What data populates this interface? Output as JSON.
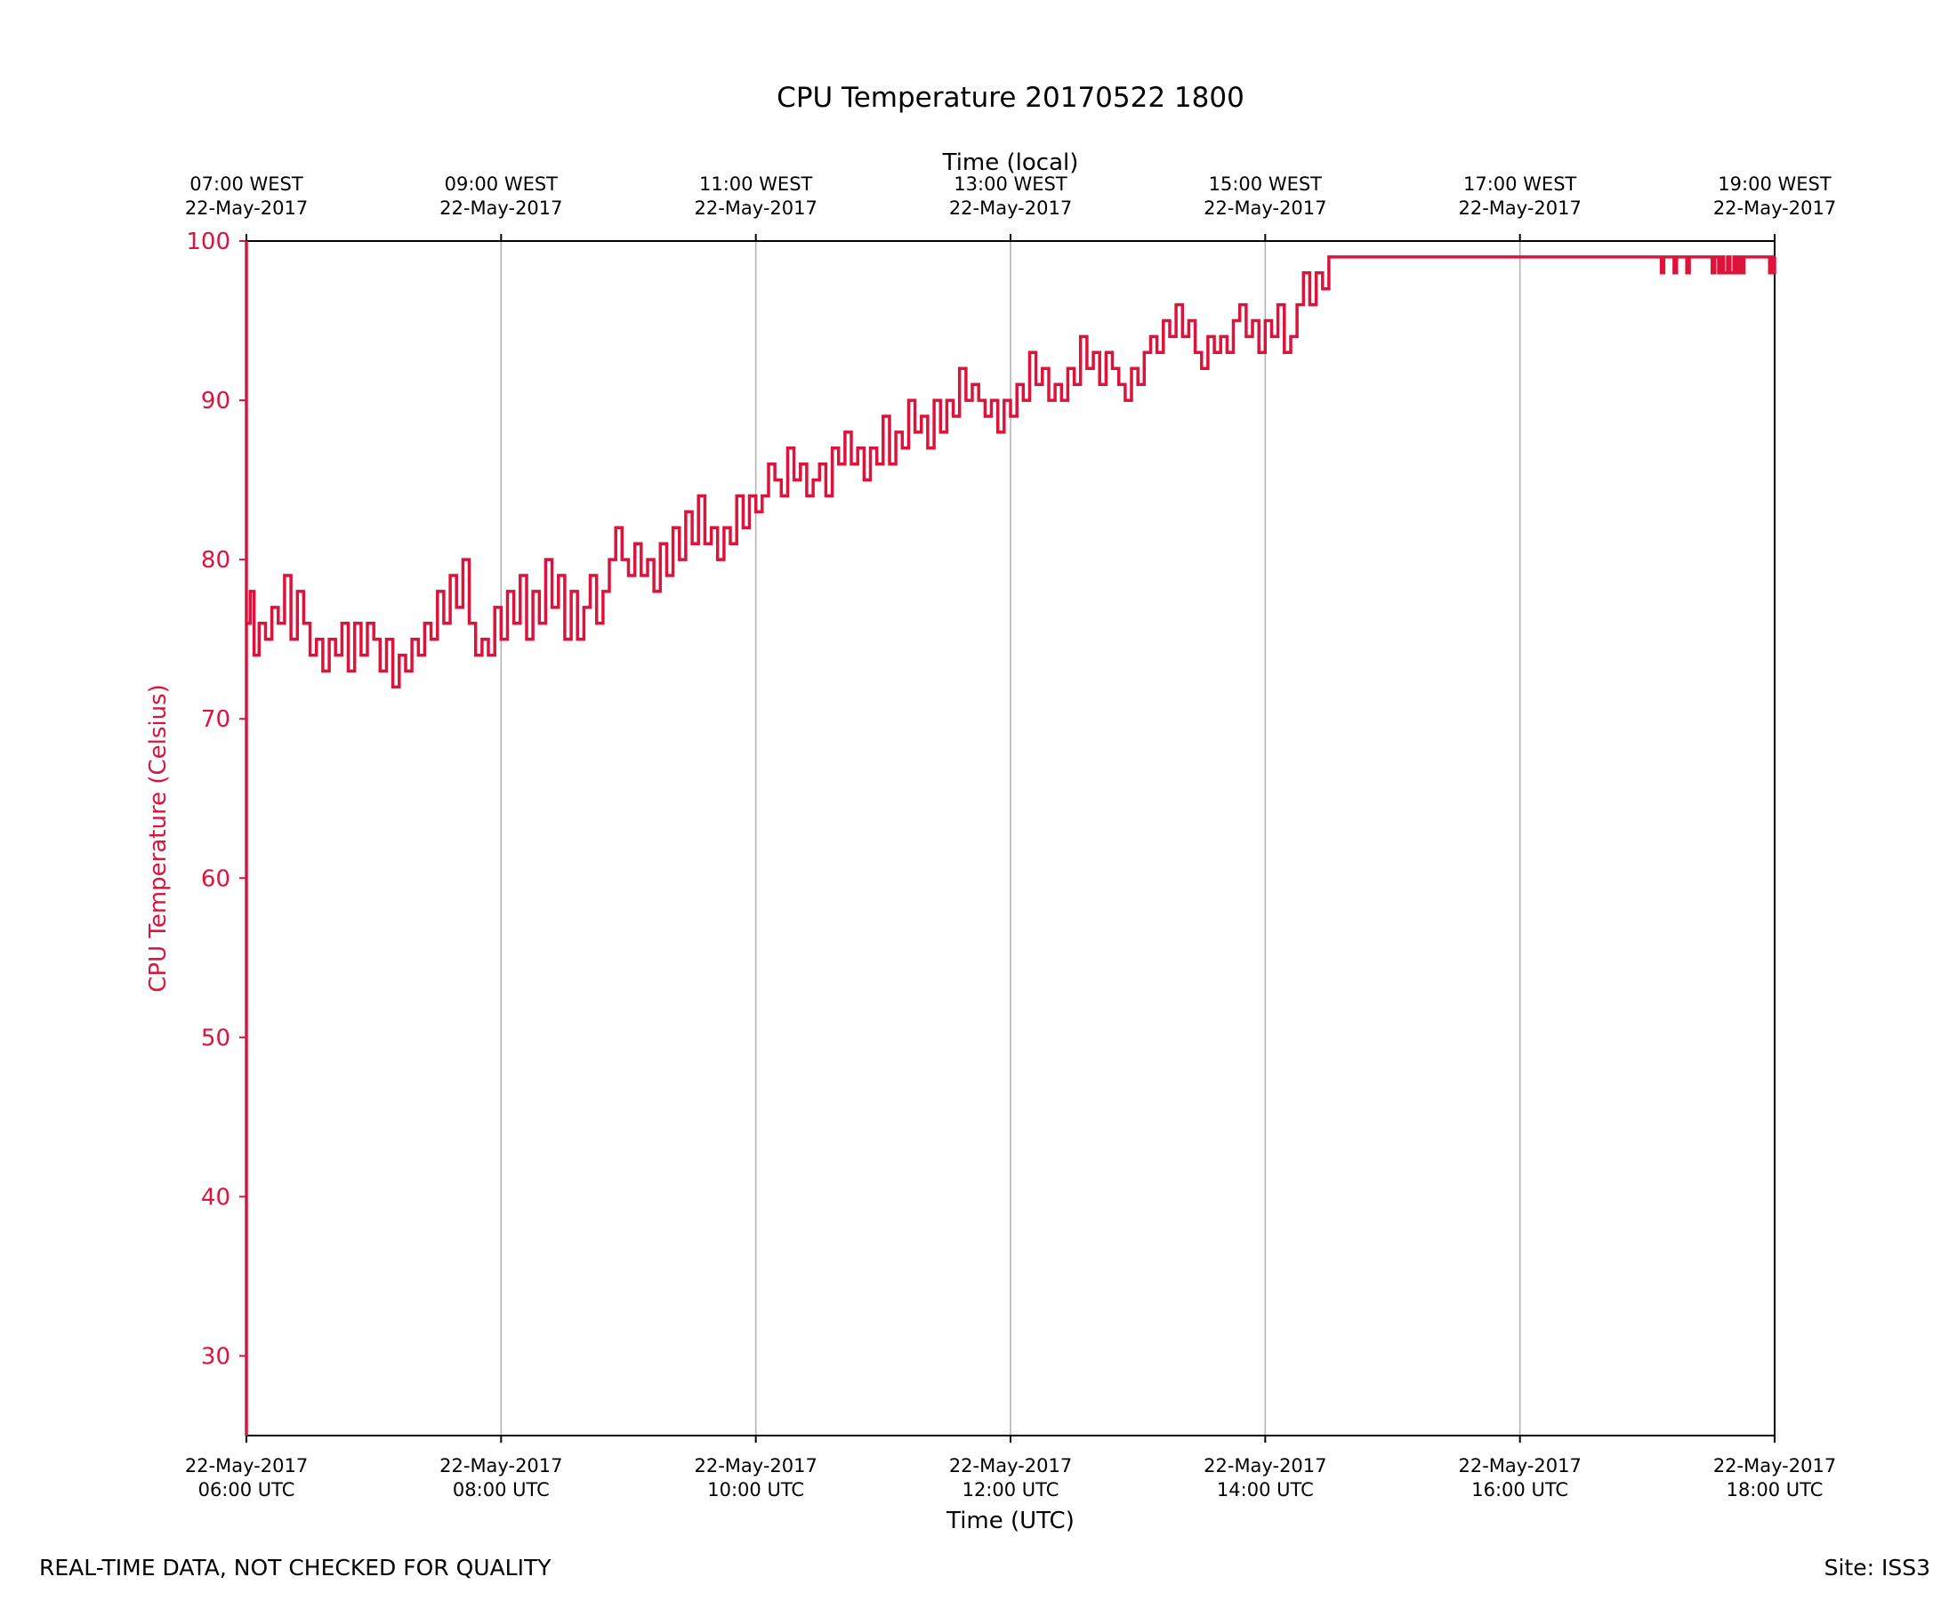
{
  "chart_data": {
    "type": "line",
    "title": "CPU Temperature 20170522 1800",
    "xlabel": "Time (UTC)",
    "x2label": "Time (local)",
    "ylabel": "CPU Temperature (Celsius)",
    "ylim": [
      25,
      100
    ],
    "xlim_hours": [
      6,
      18
    ],
    "yticks": [
      30,
      40,
      50,
      60,
      70,
      80,
      90,
      100
    ],
    "xticks_bottom": [
      {
        "hour": 6,
        "line1": "22-May-2017",
        "line2": "06:00 UTC"
      },
      {
        "hour": 8,
        "line1": "22-May-2017",
        "line2": "08:00 UTC"
      },
      {
        "hour": 10,
        "line1": "22-May-2017",
        "line2": "10:00 UTC"
      },
      {
        "hour": 12,
        "line1": "22-May-2017",
        "line2": "12:00 UTC"
      },
      {
        "hour": 14,
        "line1": "22-May-2017",
        "line2": "14:00 UTC"
      },
      {
        "hour": 16,
        "line1": "22-May-2017",
        "line2": "16:00 UTC"
      },
      {
        "hour": 18,
        "line1": "22-May-2017",
        "line2": "18:00 UTC"
      }
    ],
    "xticks_top": [
      {
        "hour": 6,
        "line1": "07:00 WEST",
        "line2": "22-May-2017"
      },
      {
        "hour": 8,
        "line1": "09:00 WEST",
        "line2": "22-May-2017"
      },
      {
        "hour": 10,
        "line1": "11:00 WEST",
        "line2": "22-May-2017"
      },
      {
        "hour": 12,
        "line1": "13:00 WEST",
        "line2": "22-May-2017"
      },
      {
        "hour": 14,
        "line1": "15:00 WEST",
        "line2": "22-May-2017"
      },
      {
        "hour": 16,
        "line1": "17:00 WEST",
        "line2": "22-May-2017"
      },
      {
        "hour": 18,
        "line1": "19:00 WEST",
        "line2": "22-May-2017"
      }
    ],
    "grid_vertical": true,
    "series": [
      {
        "name": "CPU Temperature",
        "color": "#dc143c",
        "points": [
          [
            6.0,
            100
          ],
          [
            6.0,
            25
          ],
          [
            6.0,
            76
          ],
          [
            6.03,
            78
          ],
          [
            6.06,
            74
          ],
          [
            6.1,
            76
          ],
          [
            6.15,
            75
          ],
          [
            6.2,
            77
          ],
          [
            6.25,
            76
          ],
          [
            6.3,
            79
          ],
          [
            6.35,
            75
          ],
          [
            6.4,
            78
          ],
          [
            6.45,
            76
          ],
          [
            6.5,
            74
          ],
          [
            6.55,
            75
          ],
          [
            6.6,
            73
          ],
          [
            6.65,
            75
          ],
          [
            6.7,
            74
          ],
          [
            6.75,
            76
          ],
          [
            6.8,
            73
          ],
          [
            6.85,
            76
          ],
          [
            6.9,
            74
          ],
          [
            6.95,
            76
          ],
          [
            7.0,
            75
          ],
          [
            7.05,
            73
          ],
          [
            7.1,
            75
          ],
          [
            7.15,
            72
          ],
          [
            7.2,
            74
          ],
          [
            7.25,
            73
          ],
          [
            7.3,
            75
          ],
          [
            7.35,
            74
          ],
          [
            7.4,
            76
          ],
          [
            7.45,
            75
          ],
          [
            7.5,
            78
          ],
          [
            7.55,
            76
          ],
          [
            7.6,
            79
          ],
          [
            7.65,
            77
          ],
          [
            7.7,
            80
          ],
          [
            7.75,
            76
          ],
          [
            7.8,
            74
          ],
          [
            7.85,
            75
          ],
          [
            7.9,
            74
          ],
          [
            7.95,
            77
          ],
          [
            8.0,
            75
          ],
          [
            8.05,
            78
          ],
          [
            8.1,
            76
          ],
          [
            8.15,
            79
          ],
          [
            8.2,
            75
          ],
          [
            8.25,
            78
          ],
          [
            8.3,
            76
          ],
          [
            8.35,
            80
          ],
          [
            8.4,
            77
          ],
          [
            8.45,
            79
          ],
          [
            8.5,
            75
          ],
          [
            8.55,
            78
          ],
          [
            8.6,
            75
          ],
          [
            8.65,
            77
          ],
          [
            8.7,
            79
          ],
          [
            8.75,
            76
          ],
          [
            8.8,
            78
          ],
          [
            8.85,
            80
          ],
          [
            8.9,
            82
          ],
          [
            8.95,
            80
          ],
          [
            9.0,
            79
          ],
          [
            9.05,
            81
          ],
          [
            9.1,
            79
          ],
          [
            9.15,
            80
          ],
          [
            9.2,
            78
          ],
          [
            9.25,
            81
          ],
          [
            9.3,
            79
          ],
          [
            9.35,
            82
          ],
          [
            9.4,
            80
          ],
          [
            9.45,
            83
          ],
          [
            9.5,
            81
          ],
          [
            9.55,
            84
          ],
          [
            9.6,
            81
          ],
          [
            9.65,
            82
          ],
          [
            9.7,
            80
          ],
          [
            9.75,
            82
          ],
          [
            9.8,
            81
          ],
          [
            9.85,
            84
          ],
          [
            9.9,
            82
          ],
          [
            9.95,
            84
          ],
          [
            10.0,
            83
          ],
          [
            10.05,
            84
          ],
          [
            10.1,
            86
          ],
          [
            10.15,
            85
          ],
          [
            10.2,
            84
          ],
          [
            10.25,
            87
          ],
          [
            10.3,
            85
          ],
          [
            10.35,
            86
          ],
          [
            10.4,
            84
          ],
          [
            10.45,
            85
          ],
          [
            10.5,
            86
          ],
          [
            10.55,
            84
          ],
          [
            10.6,
            87
          ],
          [
            10.65,
            86
          ],
          [
            10.7,
            88
          ],
          [
            10.75,
            86
          ],
          [
            10.8,
            87
          ],
          [
            10.85,
            85
          ],
          [
            10.9,
            87
          ],
          [
            10.95,
            86
          ],
          [
            11.0,
            89
          ],
          [
            11.05,
            86
          ],
          [
            11.1,
            88
          ],
          [
            11.15,
            87
          ],
          [
            11.2,
            90
          ],
          [
            11.25,
            88
          ],
          [
            11.3,
            89
          ],
          [
            11.35,
            87
          ],
          [
            11.4,
            90
          ],
          [
            11.45,
            88
          ],
          [
            11.5,
            90
          ],
          [
            11.55,
            89
          ],
          [
            11.6,
            92
          ],
          [
            11.65,
            90
          ],
          [
            11.7,
            91
          ],
          [
            11.75,
            90
          ],
          [
            11.8,
            89
          ],
          [
            11.85,
            90
          ],
          [
            11.9,
            88
          ],
          [
            11.95,
            90
          ],
          [
            12.0,
            89
          ],
          [
            12.05,
            91
          ],
          [
            12.1,
            90
          ],
          [
            12.15,
            93
          ],
          [
            12.2,
            91
          ],
          [
            12.25,
            92
          ],
          [
            12.3,
            90
          ],
          [
            12.35,
            91
          ],
          [
            12.4,
            90
          ],
          [
            12.45,
            92
          ],
          [
            12.5,
            91
          ],
          [
            12.55,
            94
          ],
          [
            12.6,
            92
          ],
          [
            12.65,
            93
          ],
          [
            12.7,
            91
          ],
          [
            12.75,
            93
          ],
          [
            12.8,
            92
          ],
          [
            12.85,
            91
          ],
          [
            12.9,
            90
          ],
          [
            12.95,
            92
          ],
          [
            13.0,
            91
          ],
          [
            13.05,
            93
          ],
          [
            13.1,
            94
          ],
          [
            13.15,
            93
          ],
          [
            13.2,
            95
          ],
          [
            13.25,
            94
          ],
          [
            13.3,
            96
          ],
          [
            13.35,
            94
          ],
          [
            13.4,
            95
          ],
          [
            13.45,
            93
          ],
          [
            13.5,
            92
          ],
          [
            13.55,
            94
          ],
          [
            13.6,
            93
          ],
          [
            13.65,
            94
          ],
          [
            13.7,
            93
          ],
          [
            13.75,
            95
          ],
          [
            13.8,
            96
          ],
          [
            13.85,
            94
          ],
          [
            13.9,
            95
          ],
          [
            13.95,
            93
          ],
          [
            14.0,
            95
          ],
          [
            14.05,
            94
          ],
          [
            14.1,
            96
          ],
          [
            14.15,
            93
          ],
          [
            14.2,
            94
          ],
          [
            14.25,
            96
          ],
          [
            14.3,
            98
          ],
          [
            14.35,
            96
          ],
          [
            14.4,
            98
          ],
          [
            14.45,
            97
          ],
          [
            14.5,
            99
          ],
          [
            14.6,
            99
          ],
          [
            15.5,
            99
          ],
          [
            16.0,
            99
          ],
          [
            16.5,
            99
          ],
          [
            17.0,
            99
          ],
          [
            17.1,
            99
          ],
          [
            17.11,
            98
          ],
          [
            17.13,
            99
          ],
          [
            17.2,
            99
          ],
          [
            17.21,
            98
          ],
          [
            17.23,
            99
          ],
          [
            17.3,
            99
          ],
          [
            17.31,
            98
          ],
          [
            17.33,
            99
          ],
          [
            17.5,
            99
          ],
          [
            17.51,
            98
          ],
          [
            17.53,
            99
          ],
          [
            17.56,
            98
          ],
          [
            17.58,
            99
          ],
          [
            17.6,
            98
          ],
          [
            17.63,
            99
          ],
          [
            17.65,
            98
          ],
          [
            17.68,
            99
          ],
          [
            17.7,
            98
          ],
          [
            17.72,
            99
          ],
          [
            17.74,
            98
          ],
          [
            17.76,
            99
          ],
          [
            17.8,
            99
          ],
          [
            17.95,
            99
          ],
          [
            17.96,
            98
          ],
          [
            17.98,
            99
          ],
          [
            17.99,
            98
          ],
          [
            18.0,
            99
          ]
        ]
      }
    ]
  },
  "footer": {
    "left": "REAL-TIME DATA, NOT CHECKED FOR QUALITY",
    "right": "Site: ISS3"
  }
}
